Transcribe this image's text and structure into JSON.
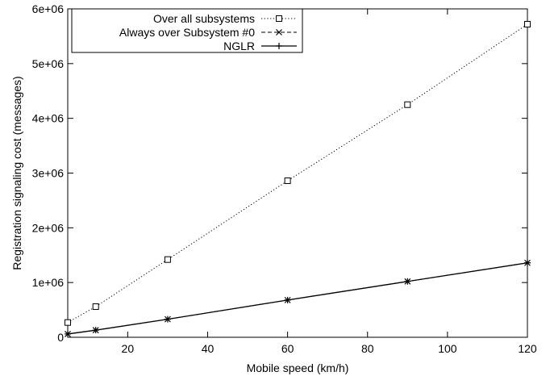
{
  "chart_data": {
    "type": "line",
    "title": "",
    "xlabel": "Mobile speed (km/h)",
    "ylabel": "Registration signaling cost (messages)",
    "xlim": [
      5,
      120
    ],
    "ylim": [
      0,
      6000000
    ],
    "xticks": [
      20,
      40,
      60,
      80,
      100,
      120
    ],
    "yticks": [
      0,
      1000000,
      2000000,
      3000000,
      4000000,
      5000000,
      6000000
    ],
    "xtick_labels": [
      "20",
      "40",
      "60",
      "80",
      "100",
      "120"
    ],
    "ytick_labels": [
      "0",
      "1e+06",
      "2e+06",
      "3e+06",
      "4e+06",
      "5e+06",
      "6e+06"
    ],
    "grid": false,
    "legend_position": "top-left",
    "series": [
      {
        "name": "Over all subsystems",
        "line_style": "dotted",
        "marker": "square",
        "x": [
          5,
          12,
          30,
          60,
          90,
          120
        ],
        "y": [
          270000,
          560000,
          1420000,
          2860000,
          4250000,
          5720000
        ]
      },
      {
        "name": "Always over Subsystem #0",
        "line_style": "dashed",
        "marker": "x",
        "x": [
          5,
          12,
          30,
          60,
          90,
          120
        ],
        "y": [
          60000,
          130000,
          330000,
          680000,
          1020000,
          1360000
        ]
      },
      {
        "name": "NGLR",
        "line_style": "solid",
        "marker": "plus",
        "x": [
          5,
          12,
          30,
          60,
          90,
          120
        ],
        "y": [
          60000,
          130000,
          330000,
          680000,
          1020000,
          1360000
        ]
      }
    ]
  }
}
